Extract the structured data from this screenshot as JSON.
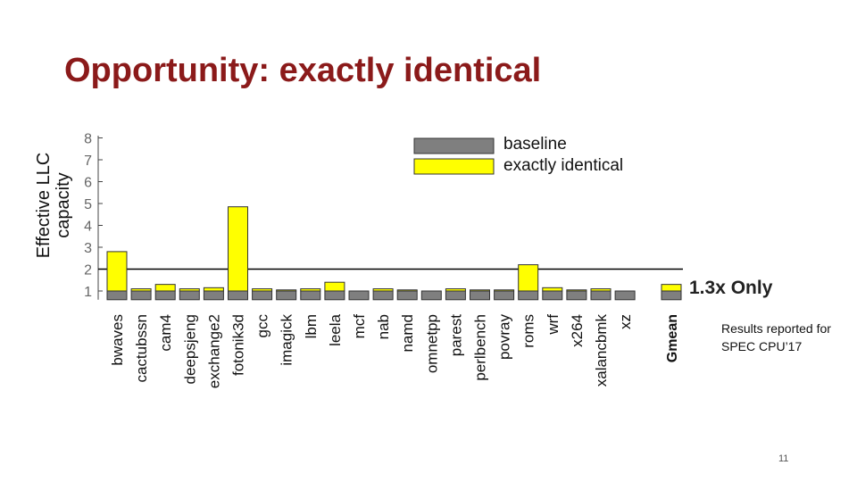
{
  "slide": {
    "title": "Opportunity: exactly identical",
    "ylabel_line1": "Effective LLC",
    "ylabel_line2": "capacity",
    "callout": "1.3x Only",
    "note": "Results reported for SPEC CPU’17",
    "page_number": "11"
  },
  "chart_data": {
    "type": "bar",
    "categories": [
      "bwaves",
      "cactubssn",
      "cam4",
      "deepsjeng",
      "exchange2",
      "fotonik3d",
      "gcc",
      "imagick",
      "lbm",
      "leela",
      "mcf",
      "nab",
      "namd",
      "omnetpp",
      "parest",
      "perlbench",
      "povray",
      "roms",
      "wrf",
      "x264",
      "xalancbmk",
      "xz",
      "Gmean"
    ],
    "series": [
      {
        "name": "baseline",
        "color": "#7f7f7f",
        "values": [
          1,
          1,
          1,
          1,
          1,
          1,
          1,
          1,
          1,
          1,
          1,
          1,
          1,
          1,
          1,
          1,
          1,
          1,
          1,
          1,
          1,
          1,
          1
        ]
      },
      {
        "name": "exactly identical",
        "color": "#ffff00",
        "values": [
          2.8,
          1.1,
          1.3,
          1.1,
          1.15,
          4.85,
          1.1,
          1.05,
          1.1,
          1.4,
          1.0,
          1.1,
          1.05,
          1.0,
          1.1,
          1.05,
          1.05,
          2.2,
          1.15,
          1.05,
          1.1,
          1.0,
          1.3
        ]
      },
      {
        "value_key": "edge_color_note",
        "name": null,
        "values": null
      }
    ],
    "yticks": [
      1,
      2,
      3,
      4,
      5,
      6,
      7,
      8
    ],
    "ylim": [
      0.6,
      8.1
    ],
    "reference_line": 2,
    "grid": false,
    "legend_position": "top-right"
  }
}
